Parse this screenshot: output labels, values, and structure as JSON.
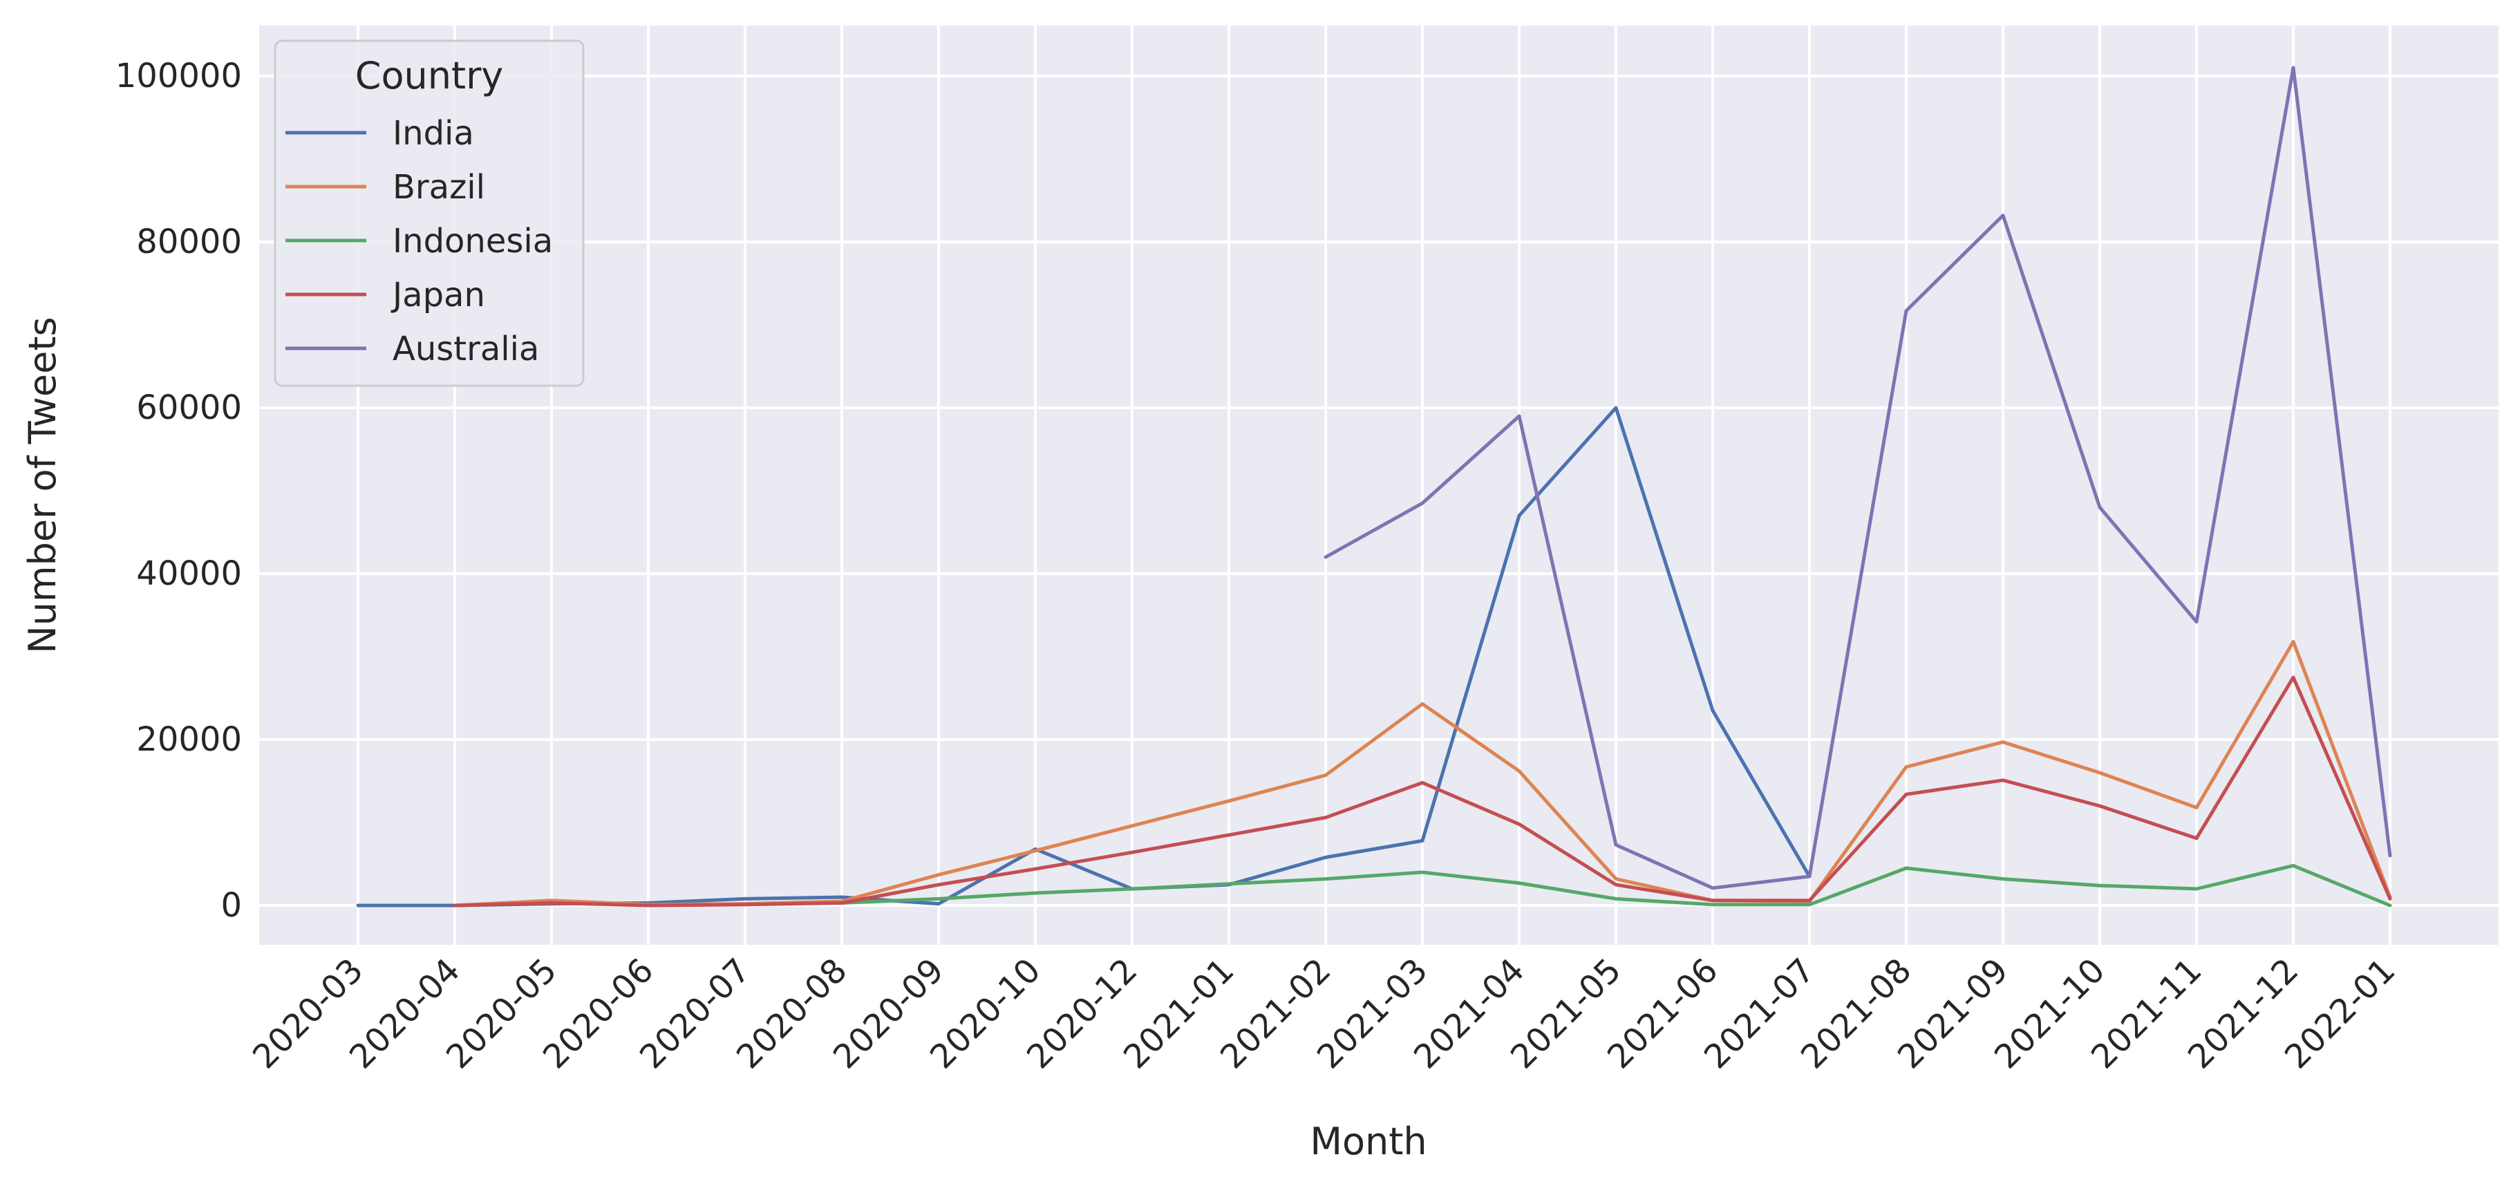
{
  "chart_data": {
    "type": "line",
    "title": "",
    "xlabel": "Month",
    "ylabel": "Number of Tweets",
    "ylim": [
      -5000,
      106000
    ],
    "yticks": [
      0,
      20000,
      40000,
      60000,
      80000,
      100000
    ],
    "grid": true,
    "legend": {
      "title": "Country",
      "placement": "top-left"
    },
    "categories": [
      "2020-03",
      "2020-04",
      "2020-05",
      "2020-06",
      "2020-07",
      "2020-08",
      "2020-09",
      "2020-10",
      "2020-12",
      "2021-01",
      "2021-02",
      "2021-03",
      "2021-04",
      "2021-05",
      "2021-06",
      "2021-07",
      "2021-08",
      "2021-09",
      "2021-10",
      "2021-11",
      "2021-12",
      "2022-01"
    ],
    "series": [
      {
        "name": "India",
        "color": "#4c72b0",
        "values": [
          0,
          0,
          200,
          300,
          800,
          1000,
          200,
          6800,
          2000,
          2500,
          5800,
          7800,
          47000,
          60000,
          23500,
          3500,
          null,
          null,
          null,
          null,
          null,
          null
        ]
      },
      {
        "name": "Brazil",
        "color": "#dd8452",
        "values": [
          null,
          0,
          600,
          100,
          200,
          500,
          3700,
          6600,
          9600,
          12600,
          15700,
          24300,
          16200,
          3200,
          600,
          500,
          16700,
          19700,
          16000,
          11800,
          31800,
          1000
        ]
      },
      {
        "name": "Indonesia",
        "color": "#55a868",
        "values": [
          null,
          null,
          null,
          null,
          null,
          300,
          800,
          1500,
          2000,
          2600,
          3200,
          4000,
          2700,
          800,
          100,
          100,
          4500,
          3200,
          2400,
          2000,
          4800,
          0
        ]
      },
      {
        "name": "Japan",
        "color": "#c44e52",
        "values": [
          null,
          0,
          300,
          0,
          100,
          300,
          2500,
          4400,
          6400,
          8500,
          10600,
          14800,
          9800,
          2500,
          600,
          600,
          13400,
          15100,
          12000,
          8100,
          27500,
          800
        ]
      },
      {
        "name": "Australia",
        "color": "#8172b3",
        "values": [
          null,
          null,
          null,
          null,
          null,
          null,
          null,
          null,
          null,
          null,
          42000,
          48500,
          59000,
          7300,
          2100,
          3500,
          71700,
          83200,
          48000,
          34200,
          101000,
          6000
        ]
      }
    ]
  }
}
